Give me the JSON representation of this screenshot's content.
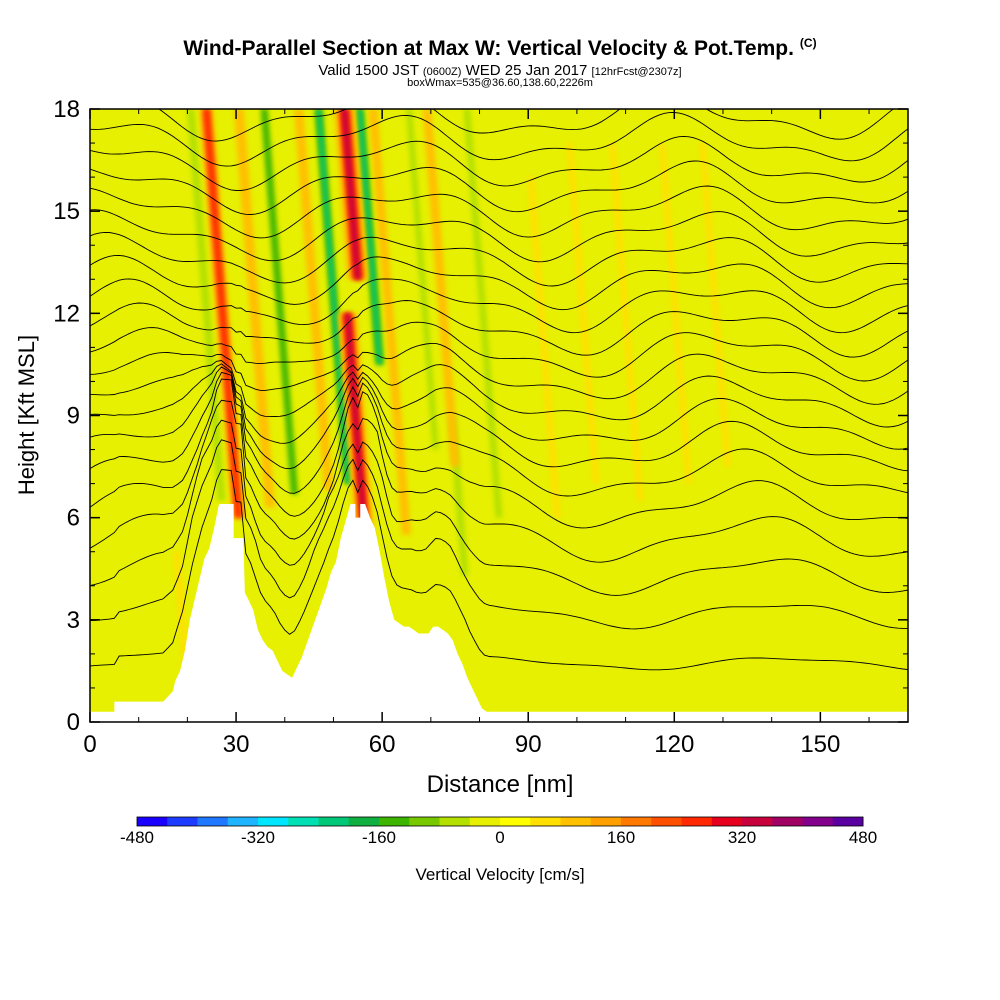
{
  "titles": {
    "line1": "Wind-Parallel Section at Max W: Vertical Velocity & Pot.Temp.",
    "copyright": "(C)",
    "line2_a": "Valid 1500 JST",
    "line2_b": "(0600Z)",
    "line2_c": "WED 25 Jan 2017",
    "line2_d": "[12hrFcst@2307z]",
    "line3": "boxWmax=535@36.60,138.60,2226m"
  },
  "chart_data": {
    "type": "heatmap",
    "xlabel": "Distance [nm]",
    "ylabel": "Height [Kft MSL]",
    "xlim": [
      0,
      168
    ],
    "ylim": [
      0,
      18
    ],
    "xticks": [
      0,
      30,
      60,
      90,
      120,
      150
    ],
    "yticks": [
      0,
      3,
      6,
      9,
      12,
      15,
      18
    ],
    "colorbar": {
      "label": "Vertical Velocity [cm/s]",
      "range": [
        -480,
        480
      ],
      "tick_values": [
        -480,
        -320,
        -160,
        0,
        160,
        320,
        480
      ],
      "tick_labels": [
        "-480",
        "-320",
        "-160",
        "0",
        "160",
        "320",
        "480"
      ],
      "colors": [
        "#1a00ff",
        "#1e3cff",
        "#1f78ff",
        "#1fb4ff",
        "#00e6ff",
        "#00e0b4",
        "#00c878",
        "#10b040",
        "#3cb400",
        "#78c800",
        "#b4e000",
        "#e6f000",
        "#ffff00",
        "#ffe000",
        "#ffc000",
        "#ffa000",
        "#ff7800",
        "#ff5000",
        "#ff2800",
        "#e6001e",
        "#c8003c",
        "#a00064",
        "#82008c",
        "#5a00a0"
      ]
    },
    "series": [
      {
        "name": "Vertical Velocity",
        "updrafts": [
          {
            "x": 30.5,
            "y_base": 6.0,
            "y_top": 18,
            "value": 240
          },
          {
            "x": 37,
            "y_base": 6.3,
            "y_top": 18,
            "value": 120
          },
          {
            "x": 49,
            "y_base": 6.8,
            "y_top": 18,
            "value": 100
          },
          {
            "x": 57,
            "y_base": 4.5,
            "y_top": 12,
            "value": 400
          },
          {
            "x": 65,
            "y_base": 5.5,
            "y_top": 18,
            "value": 90
          },
          {
            "x": 75,
            "y_base": 7.5,
            "y_top": 18,
            "value": 90
          },
          {
            "x": 96,
            "y_base": 6.0,
            "y_top": 16,
            "value": 70
          },
          {
            "x": 104,
            "y_base": 7.0,
            "y_top": 17,
            "value": 60
          },
          {
            "x": 113,
            "y_base": 6.5,
            "y_top": 17,
            "value": 60
          },
          {
            "x": 123,
            "y_base": 7.0,
            "y_top": 17,
            "value": 50
          },
          {
            "x": 131,
            "y_base": 7.5,
            "y_top": 17,
            "value": 50
          },
          {
            "x": 20,
            "y_base": 1.0,
            "y_top": 5.0,
            "value": 60
          },
          {
            "x": 55,
            "y_base": 13.0,
            "y_top": 18,
            "value": 450
          }
        ],
        "downdrafts": [
          {
            "x": 27,
            "y_base": 6.5,
            "y_top": 18,
            "value": -150
          },
          {
            "x": 42,
            "y_base": 6.7,
            "y_top": 18,
            "value": -200
          },
          {
            "x": 53,
            "y_base": 7.0,
            "y_top": 18,
            "value": -260
          },
          {
            "x": 59.5,
            "y_base": 10.5,
            "y_top": 18,
            "value": -280
          },
          {
            "x": 77,
            "y_base": 4.3,
            "y_top": 9.0,
            "value": -120
          },
          {
            "x": 71,
            "y_base": 8.0,
            "y_top": 18,
            "value": -90
          },
          {
            "x": 84,
            "y_base": 6.0,
            "y_top": 18,
            "value": -110
          },
          {
            "x": 90,
            "y_base": 2.0,
            "y_top": 5.0,
            "value": -60
          },
          {
            "x": 100,
            "y_base": 5.0,
            "y_top": 16,
            "value": -60
          },
          {
            "x": 108,
            "y_base": 4.5,
            "y_top": 17,
            "value": -50
          },
          {
            "x": 117,
            "y_base": 5.0,
            "y_top": 17,
            "value": -60
          },
          {
            "x": 126,
            "y_base": 6.0,
            "y_top": 17,
            "value": -50
          },
          {
            "x": 136,
            "y_base": 5.0,
            "y_top": 17,
            "value": -40
          },
          {
            "x": 4,
            "y_base": 5.5,
            "y_top": 10.0,
            "value": -40
          }
        ]
      },
      {
        "name": "Potential Temperature",
        "isentrope_heights": [
          1.5,
          3.0,
          4.2,
          5.3,
          6.3,
          7.2,
          8.0,
          8.7,
          9.4,
          10.1,
          10.8,
          11.5,
          12.2,
          12.9,
          13.6,
          14.3,
          15.0,
          15.7,
          16.4,
          17.1,
          17.8
        ]
      }
    ],
    "terrain": {
      "x": [
        0,
        5,
        5,
        15,
        17,
        17.5,
        18.5,
        19.5,
        20.5,
        21.5,
        22.5,
        23.5,
        24.5,
        25.5,
        26.5,
        27.5,
        28.5,
        29.5,
        29.5,
        31.5,
        31.8,
        32.5,
        33.5,
        34.5,
        35.5,
        36.5,
        37.5,
        38.5,
        39.5,
        40.5,
        41.5,
        42.5,
        43.5,
        44.5,
        45.5,
        46.5,
        47.5,
        48.5,
        49.5,
        50.5,
        51.5,
        52.5,
        53.5,
        54.5,
        54.5,
        55.5,
        55.5,
        56.5,
        57.5,
        58.5,
        59.5,
        60.5,
        61.5,
        62.5,
        63.5,
        64.5,
        65.5,
        66.5,
        67.5,
        68.5,
        69.5,
        70.5,
        71.5,
        72.5,
        73.5,
        74.5,
        75.5,
        76.5,
        77.5,
        78.5,
        79.5,
        80.5,
        81.5,
        168
      ],
      "y": [
        0.3,
        0.3,
        0.6,
        0.6,
        0.9,
        1.2,
        1.5,
        2.1,
        3.0,
        3.6,
        4.2,
        4.8,
        5.1,
        5.7,
        6.4,
        6.4,
        6.4,
        6.4,
        5.4,
        5.4,
        3.8,
        3.6,
        3.3,
        2.7,
        2.4,
        2.2,
        2.1,
        1.8,
        1.5,
        1.4,
        1.3,
        1.6,
        1.9,
        2.3,
        2.7,
        3.1,
        3.5,
        3.9,
        4.4,
        4.7,
        5.4,
        5.9,
        6.4,
        6.4,
        6.0,
        6.0,
        6.4,
        6.4,
        6.0,
        5.7,
        5.0,
        4.2,
        3.5,
        3.0,
        2.9,
        2.8,
        2.8,
        2.7,
        2.6,
        2.6,
        2.6,
        2.8,
        2.8,
        2.7,
        2.6,
        2.4,
        2.0,
        1.7,
        1.3,
        1.0,
        0.7,
        0.4,
        0.3,
        0.3
      ]
    }
  }
}
